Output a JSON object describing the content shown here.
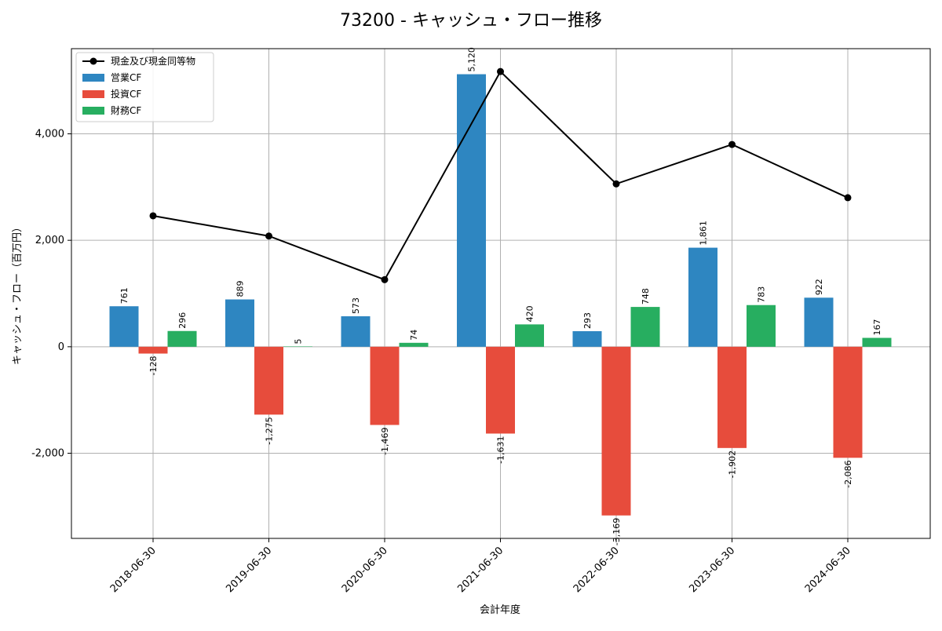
{
  "chart_data": {
    "type": "bar",
    "title": "73200 - キャッシュ・フロー推移",
    "xlabel": "会計年度",
    "ylabel": "キャッシュ・フロー（百万円）",
    "categories": [
      "2018-06-30",
      "2019-06-30",
      "2020-06-30",
      "2021-06-30",
      "2022-06-30",
      "2023-06-30",
      "2024-06-30"
    ],
    "ylim": [
      -3600,
      5600
    ],
    "yticks": [
      -2000,
      0,
      2000,
      4000
    ],
    "ytick_labels": [
      "-2,000",
      "0",
      "2,000",
      "4,000"
    ],
    "grid": true,
    "legend_position": "top-left",
    "series": [
      {
        "name": "営業CF",
        "kind": "bar",
        "color": "#2e86c1",
        "values": [
          761,
          889,
          573,
          5120,
          293,
          1861,
          922
        ],
        "labels": [
          "761",
          "889",
          "573",
          "5,120",
          "293",
          "1,861",
          "922"
        ]
      },
      {
        "name": "投資CF",
        "kind": "bar",
        "color": "#e74c3c",
        "values": [
          -128,
          -1275,
          -1469,
          -1631,
          -3169,
          -1902,
          -2086
        ],
        "labels": [
          "-128",
          "-1,275",
          "-1,469",
          "-1,631",
          "-3,169",
          "-1,902",
          "-2,086"
        ]
      },
      {
        "name": "財務CF",
        "kind": "bar",
        "color": "#27ae60",
        "values": [
          296,
          5,
          74,
          420,
          748,
          783,
          167
        ],
        "labels": [
          "296",
          "5",
          "74",
          "420",
          "748",
          "783",
          "167"
        ]
      },
      {
        "name": "現金及び現金同等物",
        "kind": "line",
        "color": "#000000",
        "values": [
          2460,
          2080,
          1260,
          5170,
          3060,
          3800,
          2800
        ]
      }
    ]
  }
}
